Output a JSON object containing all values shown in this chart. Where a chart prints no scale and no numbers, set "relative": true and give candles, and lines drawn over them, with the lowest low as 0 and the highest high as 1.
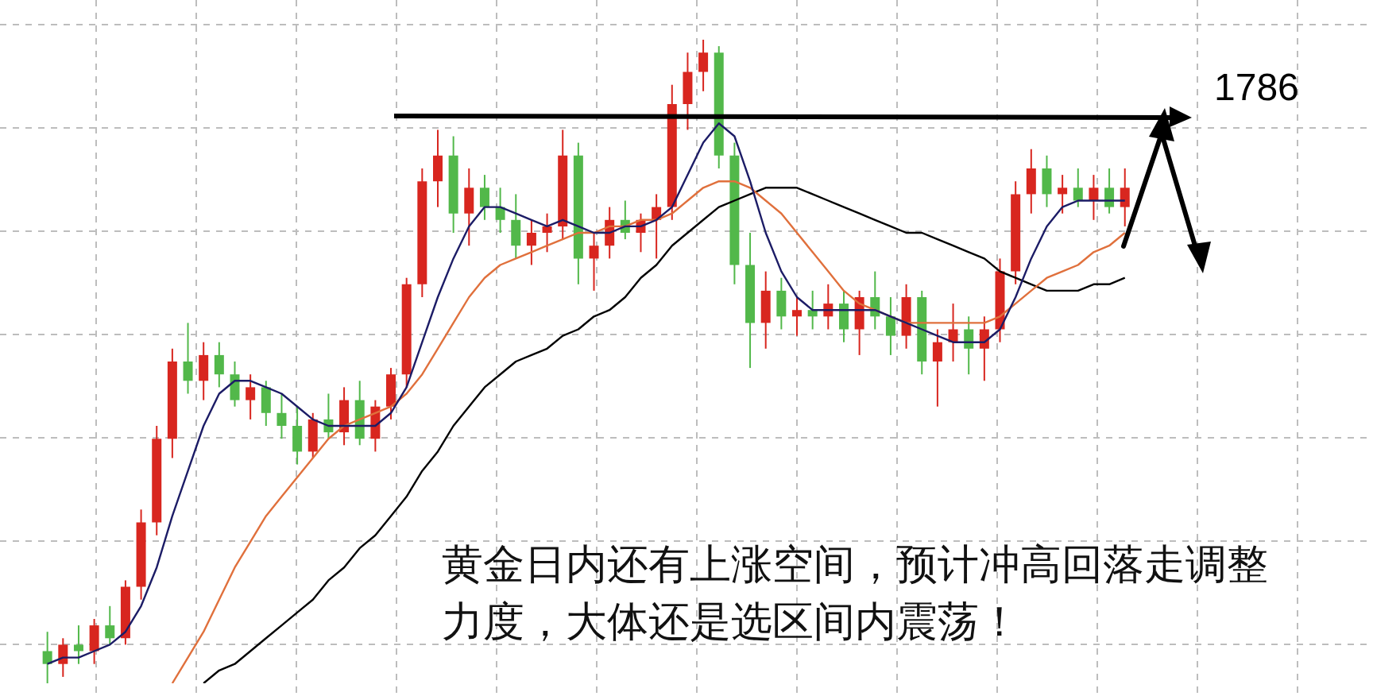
{
  "chart_data": {
    "type": "candlestick",
    "relative": true,
    "tick_labels": false,
    "grid": true,
    "legend": false,
    "categories": [
      null,
      null,
      null,
      null,
      null,
      null,
      null,
      null,
      null,
      null,
      null,
      null,
      null,
      null,
      null,
      null,
      null,
      null,
      null,
      null,
      null,
      null,
      null,
      null,
      null,
      null,
      null,
      null,
      null,
      null,
      null,
      null,
      null,
      null,
      null,
      null,
      null,
      null,
      null,
      null,
      null,
      null,
      null,
      null,
      null,
      null,
      null,
      null,
      null,
      null,
      null,
      null,
      null,
      null,
      null,
      null,
      null,
      null,
      null,
      null,
      null,
      null,
      null,
      null,
      null,
      null,
      null,
      null,
      null,
      null
    ],
    "ohlc": [
      [
        0.05,
        0.08,
        0.0,
        0.03
      ],
      [
        0.03,
        0.07,
        0.01,
        0.06
      ],
      [
        0.06,
        0.09,
        0.03,
        0.05
      ],
      [
        0.05,
        0.1,
        0.03,
        0.09
      ],
      [
        0.09,
        0.12,
        0.06,
        0.07
      ],
      [
        0.07,
        0.16,
        0.06,
        0.15
      ],
      [
        0.15,
        0.27,
        0.13,
        0.25
      ],
      [
        0.25,
        0.4,
        0.23,
        0.38
      ],
      [
        0.38,
        0.52,
        0.35,
        0.5
      ],
      [
        0.5,
        0.56,
        0.45,
        0.47
      ],
      [
        0.47,
        0.53,
        0.44,
        0.51
      ],
      [
        0.51,
        0.53,
        0.46,
        0.48
      ],
      [
        0.48,
        0.5,
        0.43,
        0.44
      ],
      [
        0.44,
        0.48,
        0.41,
        0.46
      ],
      [
        0.46,
        0.47,
        0.4,
        0.42
      ],
      [
        0.42,
        0.45,
        0.38,
        0.4
      ],
      [
        0.4,
        0.43,
        0.34,
        0.36
      ],
      [
        0.36,
        0.42,
        0.35,
        0.41
      ],
      [
        0.41,
        0.45,
        0.38,
        0.39
      ],
      [
        0.39,
        0.46,
        0.37,
        0.44
      ],
      [
        0.44,
        0.47,
        0.37,
        0.38
      ],
      [
        0.38,
        0.44,
        0.36,
        0.43
      ],
      [
        0.43,
        0.49,
        0.41,
        0.48
      ],
      [
        0.48,
        0.63,
        0.46,
        0.62
      ],
      [
        0.62,
        0.8,
        0.6,
        0.78
      ],
      [
        0.78,
        0.86,
        0.74,
        0.82
      ],
      [
        0.82,
        0.85,
        0.7,
        0.73
      ],
      [
        0.73,
        0.8,
        0.68,
        0.77
      ],
      [
        0.77,
        0.79,
        0.72,
        0.74
      ],
      [
        0.74,
        0.77,
        0.7,
        0.72
      ],
      [
        0.72,
        0.76,
        0.66,
        0.68
      ],
      [
        0.68,
        0.72,
        0.65,
        0.7
      ],
      [
        0.7,
        0.73,
        0.67,
        0.71
      ],
      [
        0.71,
        0.86,
        0.69,
        0.82
      ],
      [
        0.82,
        0.84,
        0.62,
        0.66
      ],
      [
        0.66,
        0.7,
        0.61,
        0.68
      ],
      [
        0.68,
        0.74,
        0.66,
        0.72
      ],
      [
        0.72,
        0.75,
        0.69,
        0.7
      ],
      [
        0.7,
        0.73,
        0.67,
        0.72
      ],
      [
        0.72,
        0.76,
        0.66,
        0.74
      ],
      [
        0.74,
        0.93,
        0.72,
        0.9
      ],
      [
        0.9,
        0.98,
        0.86,
        0.95
      ],
      [
        0.95,
        1.0,
        0.92,
        0.98
      ],
      [
        0.98,
        0.99,
        0.8,
        0.82
      ],
      [
        0.82,
        0.84,
        0.62,
        0.65
      ],
      [
        0.65,
        0.7,
        0.49,
        0.56
      ],
      [
        0.56,
        0.64,
        0.52,
        0.61
      ],
      [
        0.61,
        0.63,
        0.55,
        0.57
      ],
      [
        0.57,
        0.6,
        0.54,
        0.58
      ],
      [
        0.58,
        0.61,
        0.55,
        0.57
      ],
      [
        0.57,
        0.62,
        0.55,
        0.59
      ],
      [
        0.59,
        0.61,
        0.53,
        0.55
      ],
      [
        0.55,
        0.61,
        0.51,
        0.6
      ],
      [
        0.6,
        0.64,
        0.55,
        0.57
      ],
      [
        0.57,
        0.6,
        0.51,
        0.54
      ],
      [
        0.54,
        0.62,
        0.52,
        0.6
      ],
      [
        0.6,
        0.61,
        0.48,
        0.5
      ],
      [
        0.5,
        0.55,
        0.43,
        0.53
      ],
      [
        0.53,
        0.59,
        0.5,
        0.55
      ],
      [
        0.55,
        0.57,
        0.48,
        0.52
      ],
      [
        0.52,
        0.57,
        0.47,
        0.55
      ],
      [
        0.55,
        0.66,
        0.53,
        0.64
      ],
      [
        0.64,
        0.78,
        0.62,
        0.76
      ],
      [
        0.76,
        0.83,
        0.73,
        0.8
      ],
      [
        0.8,
        0.82,
        0.74,
        0.76
      ],
      [
        0.76,
        0.79,
        0.73,
        0.77
      ],
      [
        0.77,
        0.8,
        0.74,
        0.75
      ],
      [
        0.75,
        0.79,
        0.72,
        0.77
      ],
      [
        0.77,
        0.8,
        0.73,
        0.74
      ],
      [
        0.74,
        0.8,
        0.71,
        0.77
      ]
    ],
    "colors": [
      "#52b84a",
      "#d8261f",
      "#52b84a",
      "#d8261f",
      "#52b84a",
      "#d8261f",
      "#d8261f",
      "#d8261f",
      "#d8261f",
      "#52b84a",
      "#d8261f",
      "#52b84a",
      "#52b84a",
      "#d8261f",
      "#52b84a",
      "#52b84a",
      "#52b84a",
      "#d8261f",
      "#52b84a",
      "#d8261f",
      "#52b84a",
      "#d8261f",
      "#d8261f",
      "#d8261f",
      "#d8261f",
      "#d8261f",
      "#52b84a",
      "#d8261f",
      "#52b84a",
      "#52b84a",
      "#52b84a",
      "#d8261f",
      "#d8261f",
      "#d8261f",
      "#52b84a",
      "#d8261f",
      "#d8261f",
      "#52b84a",
      "#d8261f",
      "#d8261f",
      "#d8261f",
      "#d8261f",
      "#d8261f",
      "#52b84a",
      "#52b84a",
      "#52b84a",
      "#d8261f",
      "#52b84a",
      "#d8261f",
      "#52b84a",
      "#d8261f",
      "#52b84a",
      "#d8261f",
      "#52b84a",
      "#52b84a",
      "#d8261f",
      "#52b84a",
      "#d8261f",
      "#d8261f",
      "#52b84a",
      "#d8261f",
      "#d8261f",
      "#d8261f",
      "#d8261f",
      "#52b84a",
      "#d8261f",
      "#52b84a",
      "#d8261f",
      "#52b84a",
      "#d8261f"
    ],
    "series": [
      {
        "type": "line",
        "color": "#1c1c66",
        "values": [
          0.03,
          0.04,
          0.04,
          0.05,
          0.06,
          0.08,
          0.12,
          0.18,
          0.26,
          0.33,
          0.4,
          0.45,
          0.47,
          0.47,
          0.46,
          0.45,
          0.43,
          0.41,
          0.4,
          0.4,
          0.4,
          0.4,
          0.42,
          0.46,
          0.53,
          0.6,
          0.66,
          0.71,
          0.74,
          0.74,
          0.73,
          0.72,
          0.71,
          0.72,
          0.71,
          0.7,
          0.7,
          0.71,
          0.71,
          0.72,
          0.74,
          0.79,
          0.84,
          0.87,
          0.85,
          0.78,
          0.7,
          0.64,
          0.6,
          0.58,
          0.58,
          0.58,
          0.58,
          0.58,
          0.57,
          0.56,
          0.55,
          0.54,
          0.53,
          0.53,
          0.53,
          0.55,
          0.6,
          0.66,
          0.71,
          0.74,
          0.75,
          0.75,
          0.75,
          0.75
        ]
      },
      {
        "type": "line",
        "color": "#e0703c",
        "values": [
          null,
          null,
          null,
          null,
          null,
          null,
          null,
          null,
          0.0,
          0.04,
          0.08,
          0.13,
          0.18,
          0.22,
          0.26,
          0.29,
          0.32,
          0.35,
          0.38,
          0.4,
          0.41,
          0.42,
          0.43,
          0.45,
          0.48,
          0.52,
          0.56,
          0.6,
          0.63,
          0.65,
          0.66,
          0.67,
          0.68,
          0.69,
          0.7,
          0.7,
          0.71,
          0.71,
          0.72,
          0.72,
          0.73,
          0.75,
          0.77,
          0.78,
          0.78,
          0.77,
          0.75,
          0.73,
          0.7,
          0.67,
          0.64,
          0.61,
          0.59,
          0.58,
          0.57,
          0.56,
          0.56,
          0.56,
          0.56,
          0.56,
          0.56,
          0.57,
          0.59,
          0.61,
          0.63,
          0.64,
          0.65,
          0.67,
          0.68,
          0.7
        ]
      },
      {
        "type": "line",
        "color": "#000000",
        "values": [
          null,
          null,
          null,
          null,
          null,
          null,
          null,
          null,
          null,
          null,
          0.0,
          0.02,
          0.03,
          0.05,
          0.07,
          0.09,
          0.11,
          0.13,
          0.16,
          0.18,
          0.21,
          0.23,
          0.26,
          0.29,
          0.33,
          0.36,
          0.4,
          0.43,
          0.46,
          0.48,
          0.5,
          0.51,
          0.52,
          0.54,
          0.55,
          0.57,
          0.58,
          0.6,
          0.63,
          0.65,
          0.68,
          0.7,
          0.72,
          0.74,
          0.75,
          0.76,
          0.77,
          0.77,
          0.77,
          0.76,
          0.75,
          0.74,
          0.73,
          0.72,
          0.71,
          0.7,
          0.7,
          0.69,
          0.68,
          0.67,
          0.66,
          0.64,
          0.63,
          0.62,
          0.61,
          0.61,
          0.61,
          0.62,
          0.62,
          0.63
        ]
      }
    ],
    "annotations": [
      "1786",
      "黄金日内还有上涨空间，预计冲高回落走调整力度，大体还是选区间内震荡！"
    ]
  }
}
